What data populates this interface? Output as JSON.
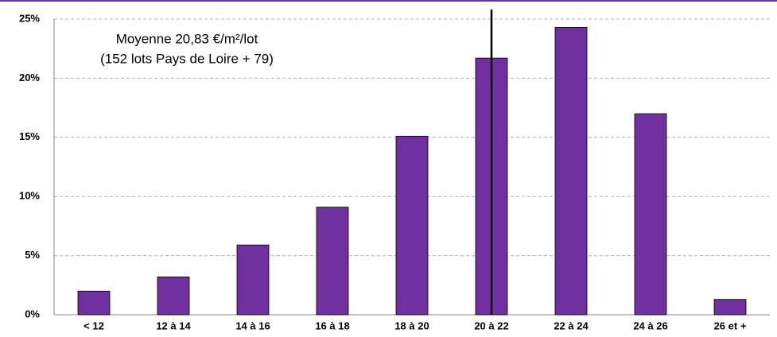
{
  "chart_data": {
    "type": "bar",
    "annotations": [
      "Moyenne  20,83 €/m²/lot",
      "(152 lots Pays de Loire + 79)"
    ],
    "categories": [
      "< 12",
      "12 à 14",
      "14 à 16",
      "16 à 18",
      "18 à 20",
      "20 à 22",
      "22 à 24",
      "24 à 26",
      "26 et +"
    ],
    "values": [
      2.0,
      3.2,
      5.9,
      9.1,
      15.1,
      21.7,
      24.3,
      17.0,
      1.3
    ],
    "color": "#7030a0",
    "ylim": [
      0,
      25
    ],
    "yticks": [
      {
        "value": 0,
        "label": "0%"
      },
      {
        "value": 5,
        "label": "5%"
      },
      {
        "value": 10,
        "label": "10%"
      },
      {
        "value": 15,
        "label": "15%"
      },
      {
        "value": 20,
        "label": "20%"
      },
      {
        "value": 25,
        "label": "25%"
      }
    ],
    "grid": true,
    "reference_line": {
      "category": "20 à 22"
    }
  }
}
